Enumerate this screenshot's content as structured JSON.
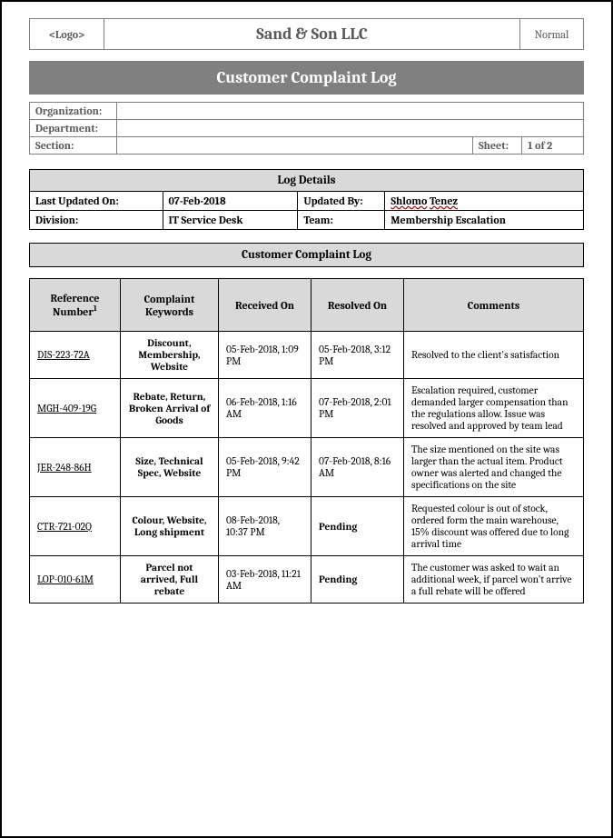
{
  "header": {
    "logo_text": "<Logo>",
    "company": "Sand & Son LLC",
    "status": "Normal"
  },
  "banner": "Customer Complaint Log",
  "meta": {
    "organization_label": "Organization:",
    "organization_value": "",
    "department_label": "Department:",
    "department_value": "",
    "section_label": "Section:",
    "section_value": "",
    "sheet_label": "Sheet:",
    "sheet_value": "1 of 2"
  },
  "details": {
    "header": "Log Details",
    "last_updated_label": "Last Updated On:",
    "last_updated_value": "07-Feb-2018",
    "updated_by_label": "Updated By:",
    "updated_by_first": "Shlomo",
    "updated_by_last": "Tenez",
    "division_label": "Division:",
    "division_value": "IT Service Desk",
    "team_label": "Team:",
    "team_value": "Membership Escalation"
  },
  "log_section_header": "Customer Complaint Log",
  "columns": {
    "ref": "Reference Number",
    "ref_sup": "1",
    "keywords": "Complaint Keywords",
    "received": "Received On",
    "resolved": "Resolved On",
    "comments": "Comments"
  },
  "rows": [
    {
      "ref": "DIS-223-72A",
      "keywords": "Discount, Membership, Website",
      "received": "05-Feb-2018, 1:09 PM",
      "resolved": "05-Feb-2018, 3:12 PM",
      "resolved_pending": false,
      "comments": "Resolved to the client's satisfaction"
    },
    {
      "ref": "MGH-409-19G",
      "keywords": "Rebate, Return, Broken Arrival of Goods",
      "received": "06-Feb-2018, 1:16 AM",
      "resolved": "07-Feb-2018, 2:01 PM",
      "resolved_pending": false,
      "comments": "Escalation required, customer demanded larger compensation than the regulations allow. Issue was resolved and approved by team lead"
    },
    {
      "ref": "JER-248-86H",
      "keywords": "Size, Technical Spec, Website",
      "received": "05-Feb-2018, 9:42 PM",
      "resolved": "07-Feb-2018, 8:16 AM",
      "resolved_pending": false,
      "comments": "The size mentioned on the site was larger than the actual item. Product owner was alerted and changed the specifications on the site"
    },
    {
      "ref": "CTR-721-02Q",
      "keywords": "Colour, Website, Long shipment",
      "received": "08-Feb-2018, 10:37 PM",
      "resolved": "Pending",
      "resolved_pending": true,
      "comments": "Requested colour is out of stock, ordered form the main warehouse, 15% discount was offered due to long arrival time"
    },
    {
      "ref": "LOP-010-61M",
      "keywords": "Parcel not arrived, Full rebate",
      "received": "03-Feb-2018, 11:21 AM",
      "resolved": "Pending",
      "resolved_pending": true,
      "comments": "The customer was asked to wait an additional week, if parcel won't arrive a full rebate will be offered"
    }
  ],
  "colors": {
    "border_gray": "#7f7f7f",
    "text_gray": "#595959",
    "banner_bg": "#808080",
    "banner_fg": "#ffffff",
    "section_bg": "#d9d9d9",
    "squiggle": "#c00000",
    "black": "#000000"
  }
}
